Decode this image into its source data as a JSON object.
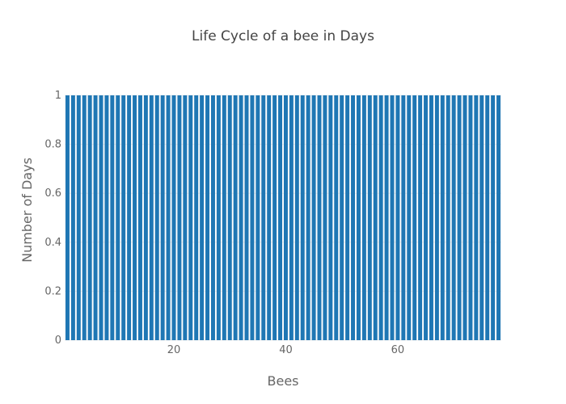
{
  "chart_data": {
    "type": "bar",
    "title": "Life Cycle of a bee in Days",
    "xlabel": "Bees",
    "ylabel": "Number of Days",
    "x": [
      1,
      2,
      3,
      4,
      5,
      6,
      7,
      8,
      9,
      10,
      11,
      12,
      13,
      14,
      15,
      16,
      17,
      18,
      19,
      20,
      21,
      22,
      23,
      24,
      25,
      26,
      27,
      28,
      29,
      30,
      31,
      32,
      33,
      34,
      35,
      36,
      37,
      38,
      39,
      40,
      41,
      42,
      43,
      44,
      45,
      46,
      47,
      48,
      49,
      50,
      51,
      52,
      53,
      54,
      55,
      56,
      57,
      58,
      59,
      60,
      61,
      62,
      63,
      64,
      65,
      66,
      67,
      68,
      69,
      70,
      71,
      72,
      73,
      74,
      75,
      76,
      77,
      78
    ],
    "values": [
      1,
      1,
      1,
      1,
      1,
      1,
      1,
      1,
      1,
      1,
      1,
      1,
      1,
      1,
      1,
      1,
      1,
      1,
      1,
      1,
      1,
      1,
      1,
      1,
      1,
      1,
      1,
      1,
      1,
      1,
      1,
      1,
      1,
      1,
      1,
      1,
      1,
      1,
      1,
      1,
      1,
      1,
      1,
      1,
      1,
      1,
      1,
      1,
      1,
      1,
      1,
      1,
      1,
      1,
      1,
      1,
      1,
      1,
      1,
      1,
      1,
      1,
      1,
      1,
      1,
      1,
      1,
      1,
      1,
      1,
      1,
      1,
      1,
      1,
      1,
      1,
      1,
      1
    ],
    "xlim": [
      0.5,
      78.5
    ],
    "ylim": [
      0,
      1
    ],
    "xticks": [
      20,
      40,
      60
    ],
    "yticks": [
      0,
      0.2,
      0.4,
      0.6,
      0.8,
      1
    ],
    "ytick_labels": [
      "0",
      "0.2",
      "0.4",
      "0.6",
      "0.8",
      "1"
    ],
    "grid": true,
    "legend": false,
    "colors": {
      "bar": "#1f77b4",
      "grid": "#eeeeee",
      "text": "#444444",
      "axis_text": "#666666"
    }
  }
}
